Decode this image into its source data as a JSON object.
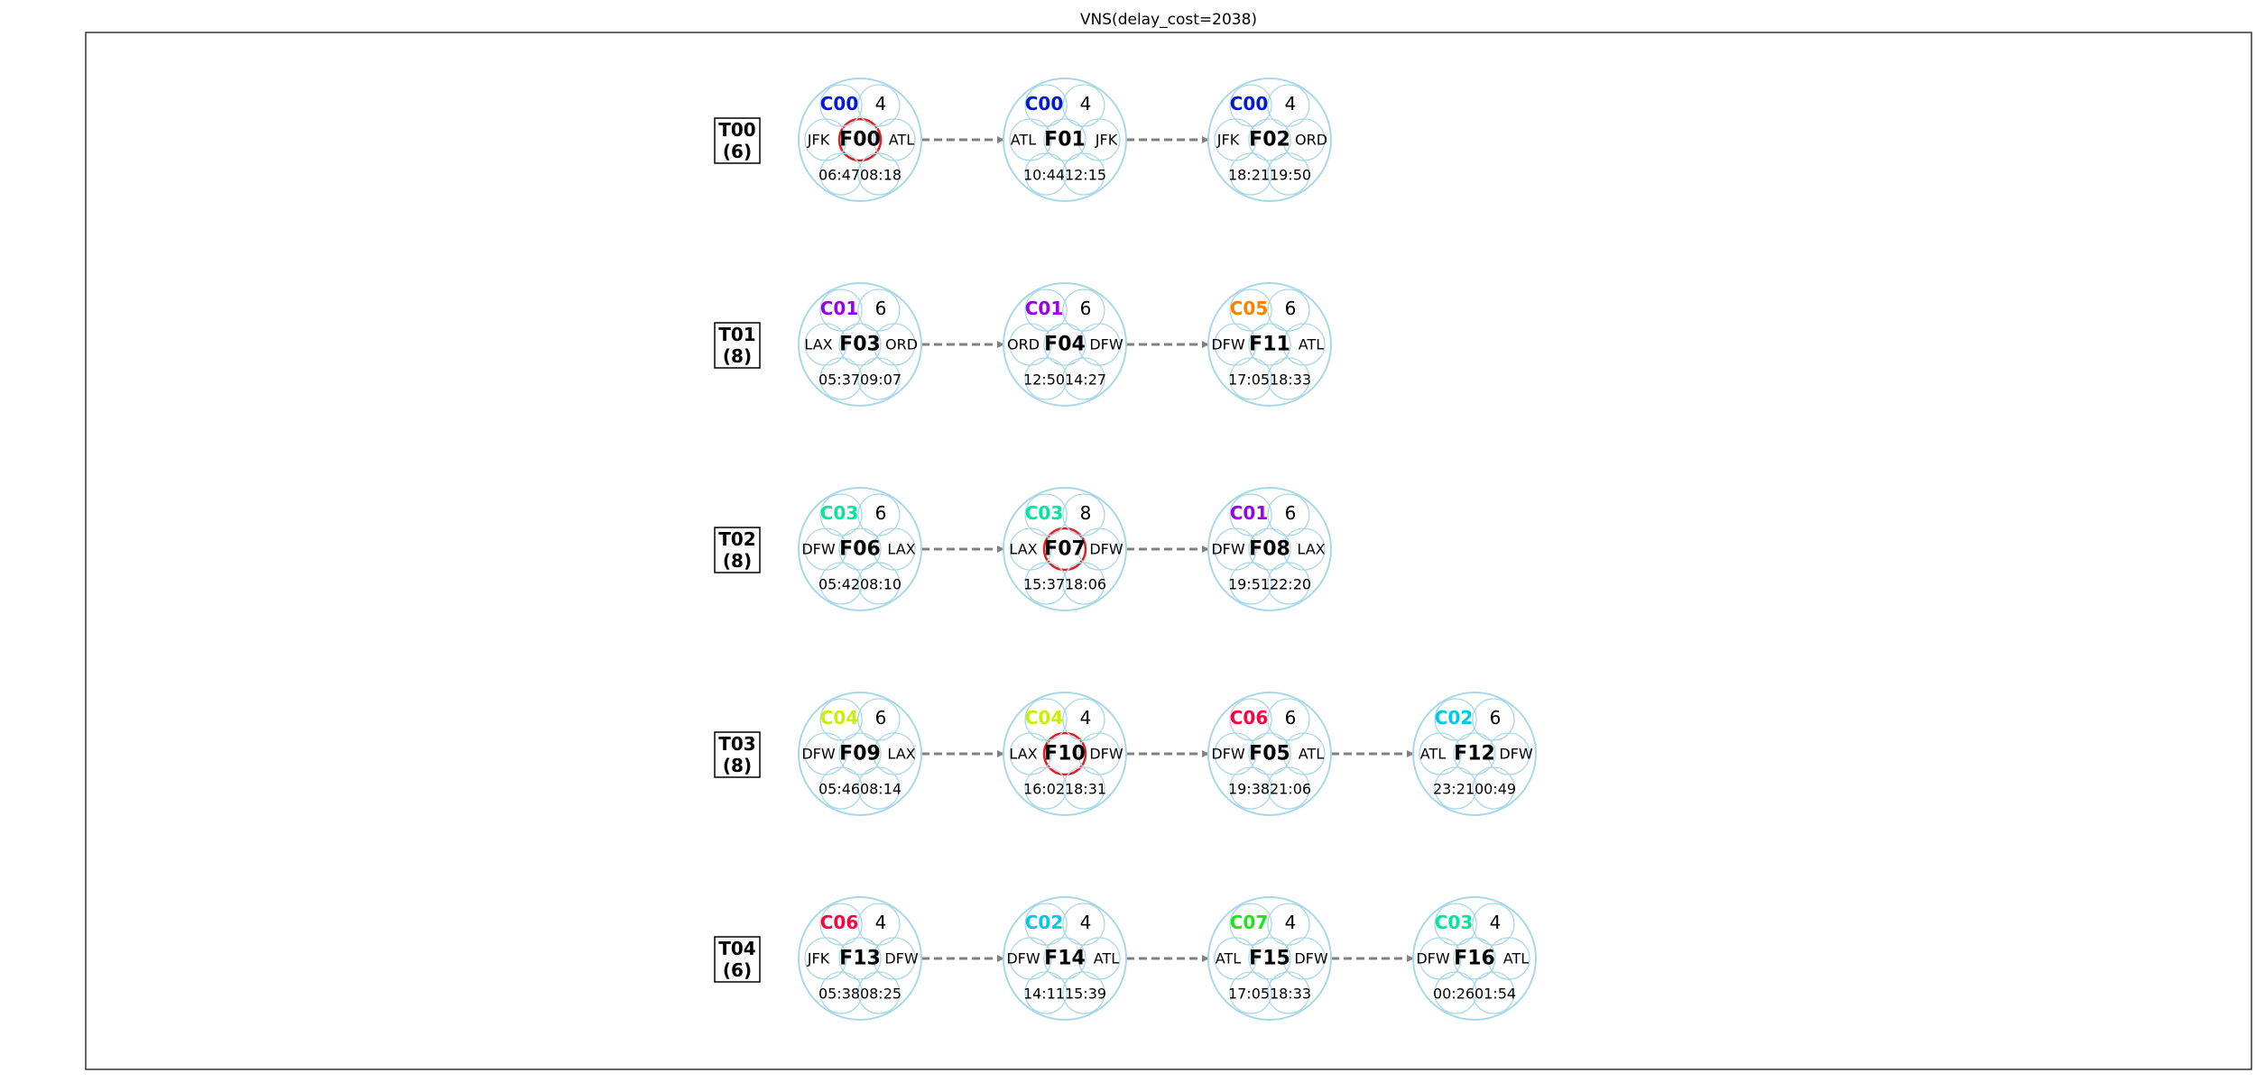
{
  "title": "VNS(delay_cost=2038)",
  "colors": {
    "C00": "#0019d6",
    "C01": "#9a00e6",
    "C02": "#00c8e6",
    "C03": "#00e69a",
    "C04": "#c8f000",
    "C05": "#ff8000",
    "C06": "#ff0040",
    "C07": "#19e619",
    "circle": "#a8d8e8",
    "highlight": "#e02020",
    "arrow": "#808080"
  },
  "rows": [
    {
      "id": "T00",
      "value": "(6)",
      "flights": [
        {
          "id": "F00",
          "crew": "C00",
          "cap": "4",
          "from": "JFK",
          "to": "ATL",
          "dep": "06:47",
          "arr": "08:18",
          "highlight": true
        },
        {
          "id": "F01",
          "crew": "C00",
          "cap": "4",
          "from": "ATL",
          "to": "JFK",
          "dep": "10:44",
          "arr": "12:15",
          "highlight": false
        },
        {
          "id": "F02",
          "crew": "C00",
          "cap": "4",
          "from": "JFK",
          "to": "ORD",
          "dep": "18:21",
          "arr": "19:50",
          "highlight": false
        }
      ]
    },
    {
      "id": "T01",
      "value": "(8)",
      "flights": [
        {
          "id": "F03",
          "crew": "C01",
          "cap": "6",
          "from": "LAX",
          "to": "ORD",
          "dep": "05:37",
          "arr": "09:07",
          "highlight": false
        },
        {
          "id": "F04",
          "crew": "C01",
          "cap": "6",
          "from": "ORD",
          "to": "DFW",
          "dep": "12:50",
          "arr": "14:27",
          "highlight": false
        },
        {
          "id": "F11",
          "crew": "C05",
          "cap": "6",
          "from": "DFW",
          "to": "ATL",
          "dep": "17:05",
          "arr": "18:33",
          "highlight": false
        }
      ]
    },
    {
      "id": "T02",
      "value": "(8)",
      "flights": [
        {
          "id": "F06",
          "crew": "C03",
          "cap": "6",
          "from": "DFW",
          "to": "LAX",
          "dep": "05:42",
          "arr": "08:10",
          "highlight": false
        },
        {
          "id": "F07",
          "crew": "C03",
          "cap": "8",
          "from": "LAX",
          "to": "DFW",
          "dep": "15:37",
          "arr": "18:06",
          "highlight": true
        },
        {
          "id": "F08",
          "crew": "C01",
          "cap": "6",
          "from": "DFW",
          "to": "LAX",
          "dep": "19:51",
          "arr": "22:20",
          "highlight": false
        }
      ]
    },
    {
      "id": "T03",
      "value": "(8)",
      "flights": [
        {
          "id": "F09",
          "crew": "C04",
          "cap": "6",
          "from": "DFW",
          "to": "LAX",
          "dep": "05:46",
          "arr": "08:14",
          "highlight": false
        },
        {
          "id": "F10",
          "crew": "C04",
          "cap": "4",
          "from": "LAX",
          "to": "DFW",
          "dep": "16:02",
          "arr": "18:31",
          "highlight": true
        },
        {
          "id": "F05",
          "crew": "C06",
          "cap": "6",
          "from": "DFW",
          "to": "ATL",
          "dep": "19:38",
          "arr": "21:06",
          "highlight": false
        },
        {
          "id": "F12",
          "crew": "C02",
          "cap": "6",
          "from": "ATL",
          "to": "DFW",
          "dep": "23:21",
          "arr": "00:49",
          "highlight": false
        }
      ]
    },
    {
      "id": "T04",
      "value": "(6)",
      "flights": [
        {
          "id": "F13",
          "crew": "C06",
          "cap": "4",
          "from": "JFK",
          "to": "DFW",
          "dep": "05:38",
          "arr": "08:25",
          "highlight": false
        },
        {
          "id": "F14",
          "crew": "C02",
          "cap": "4",
          "from": "DFW",
          "to": "ATL",
          "dep": "14:11",
          "arr": "15:39",
          "highlight": false
        },
        {
          "id": "F15",
          "crew": "C07",
          "cap": "4",
          "from": "ATL",
          "to": "DFW",
          "dep": "17:05",
          "arr": "18:33",
          "highlight": false
        },
        {
          "id": "F16",
          "crew": "C03",
          "cap": "4",
          "from": "DFW",
          "to": "ATL",
          "dep": "00:26",
          "arr": "01:54",
          "highlight": false
        }
      ]
    }
  ]
}
